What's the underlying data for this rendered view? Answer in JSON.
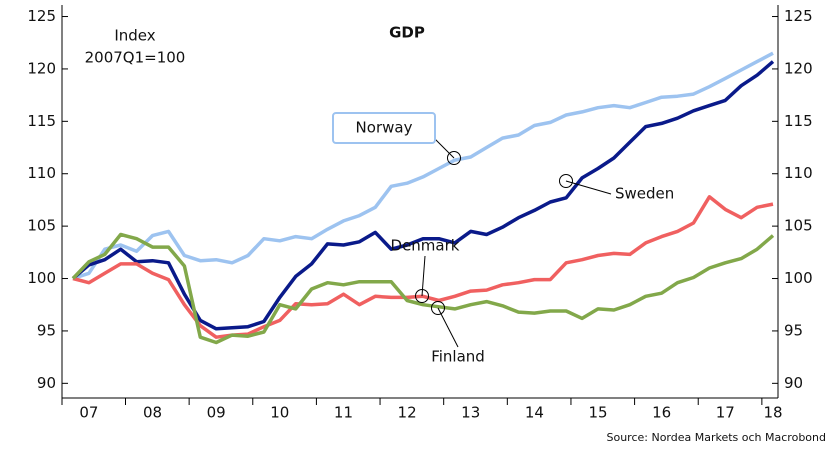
{
  "chart_data": {
    "type": "line",
    "title": "GDP",
    "annotation": [
      "Index",
      "2007Q1=100"
    ],
    "source": "Source: Nordea Markets och Macrobond",
    "categories": [
      null,
      "07",
      null,
      null,
      null,
      "08",
      null,
      null,
      null,
      "09",
      null,
      null,
      null,
      "10",
      null,
      null,
      null,
      "11",
      null,
      null,
      null,
      "12",
      null,
      null,
      null,
      "13",
      null,
      null,
      null,
      "14",
      null,
      null,
      null,
      "15",
      null,
      null,
      null,
      "16",
      null,
      null,
      null,
      "17",
      null,
      null,
      "18"
    ],
    "series": [
      {
        "name": "Norway",
        "color": "#9dc3f0",
        "values": [
          100,
          100.5,
          102.8,
          103.2,
          102.6,
          104.1,
          104.5,
          102.2,
          101.7,
          101.8,
          101.5,
          102.2,
          103.8,
          103.6,
          104.0,
          103.8,
          104.7,
          105.5,
          106.0,
          106.8,
          108.8,
          109.1,
          109.7,
          110.5,
          111.3,
          111.6,
          112.5,
          113.4,
          113.7,
          114.6,
          114.9,
          115.6,
          115.9,
          116.3,
          116.5,
          116.3,
          116.8,
          117.3,
          117.4,
          117.6,
          118.3,
          119.1,
          119.9,
          120.7,
          121.5
        ]
      },
      {
        "name": "Sweden",
        "color": "#0a1a8a",
        "values": [
          100,
          101.3,
          101.8,
          102.8,
          101.6,
          101.7,
          101.5,
          98.5,
          96.0,
          95.2,
          95.3,
          95.4,
          95.9,
          98.2,
          100.2,
          101.4,
          103.3,
          103.2,
          103.5,
          104.4,
          102.8,
          103.2,
          103.8,
          103.8,
          103.4,
          104.5,
          104.2,
          104.9,
          105.8,
          106.5,
          107.3,
          107.7,
          109.6,
          110.5,
          111.5,
          113.0,
          114.5,
          114.8,
          115.3,
          116.0,
          116.5,
          117.0,
          118.4,
          119.4,
          120.7
        ]
      },
      {
        "name": "Denmark",
        "color": "#f06060",
        "values": [
          100,
          99.6,
          100.5,
          101.4,
          101.4,
          100.5,
          99.9,
          97.5,
          95.5,
          94.4,
          94.6,
          94.7,
          95.4,
          96.0,
          97.6,
          97.5,
          97.6,
          98.5,
          97.5,
          98.3,
          98.2,
          98.2,
          98.3,
          97.9,
          98.3,
          98.8,
          98.9,
          99.4,
          99.6,
          99.9,
          99.9,
          101.5,
          101.8,
          102.2,
          102.4,
          102.3,
          103.4,
          104.0,
          104.5,
          105.3,
          107.8,
          106.6,
          105.8,
          106.8,
          107.1
        ]
      },
      {
        "name": "Finland",
        "color": "#82a84a",
        "values": [
          100,
          101.6,
          102.3,
          104.2,
          103.8,
          103.0,
          103.0,
          101.2,
          94.4,
          93.9,
          94.6,
          94.5,
          94.9,
          97.5,
          97.1,
          99.0,
          99.6,
          99.4,
          99.7,
          99.7,
          99.7,
          97.9,
          97.5,
          97.3,
          97.1,
          97.5,
          97.8,
          97.4,
          96.8,
          96.7,
          96.9,
          96.9,
          96.2,
          97.1,
          97.0,
          97.5,
          98.3,
          98.6,
          99.6,
          100.1,
          101.0,
          101.5,
          101.9,
          102.8,
          104.1
        ]
      }
    ],
    "ylim": [
      88.6,
      126.1
    ],
    "yticks": [
      90,
      95,
      100,
      105,
      110,
      115,
      120,
      125
    ],
    "y2lim": [
      88.6,
      126.1
    ],
    "y2ticks": [
      90,
      95,
      100,
      105,
      110,
      115,
      120,
      125
    ]
  }
}
